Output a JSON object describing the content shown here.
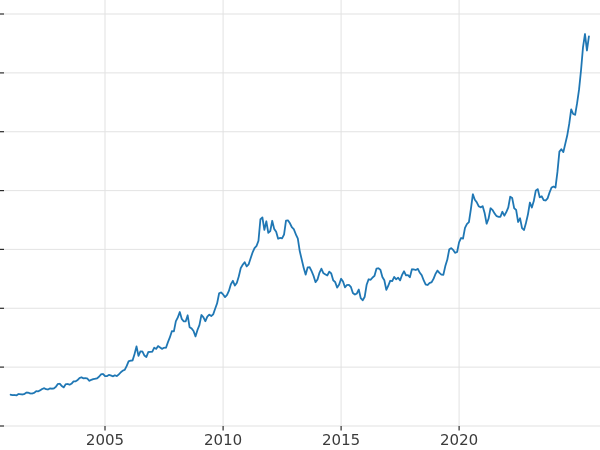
{
  "figure": {
    "background": "#ffffff"
  },
  "chart_data": {
    "type": "line",
    "title": "",
    "xlabel": "",
    "ylabel": "",
    "grid": true,
    "legend": "none",
    "xlim": [
      2000.55,
      2025.97
    ],
    "ylim": [
      0,
      3619
    ],
    "x_tick_years": [
      2005,
      2010,
      2015,
      2020
    ],
    "x_tick_labels": [
      "2005",
      "2010",
      "2015",
      "2020"
    ],
    "y_gridline_interval": 500,
    "y_tick_labels_visible": false,
    "series": [
      {
        "name": "series-1",
        "color": "#1f77b4",
        "x_start_year": 2001,
        "x_step_years": 0.0833333,
        "values": [
          266,
          262,
          263,
          260,
          272,
          270,
          268,
          272,
          284,
          283,
          276,
          276,
          282,
          296,
          294,
          303,
          314,
          321,
          313,
          310,
          319,
          317,
          319,
          333,
          357,
          359,
          340,
          328,
          355,
          357,
          351,
          360,
          379,
          379,
          390,
          407,
          414,
          405,
          407,
          403,
          384,
          392,
          398,
          401,
          405,
          420,
          439,
          442,
          424,
          424,
          434,
          429,
          422,
          431,
          424,
          438,
          456,
          470,
          477,
          510,
          550,
          555,
          557,
          611,
          676,
          596,
          634,
          633,
          599,
          586,
          628,
          630,
          631,
          665,
          655,
          679,
          667,
          655,
          665,
          665,
          713,
          755,
          806,
          804,
          890,
          922,
          968,
          910,
          889,
          889,
          940,
          839,
          829,
          807,
          761,
          816,
          858,
          943,
          924,
          890,
          929,
          946,
          934,
          949,
          997,
          1043,
          1127,
          1135,
          1118,
          1095,
          1113,
          1149,
          1205,
          1233,
          1193,
          1216,
          1271,
          1342,
          1370,
          1391,
          1356,
          1373,
          1424,
          1474,
          1511,
          1529,
          1573,
          1756,
          1772,
          1666,
          1739,
          1641,
          1656,
          1743,
          1674,
          1650,
          1591,
          1598,
          1594,
          1626,
          1745,
          1747,
          1722,
          1688,
          1671,
          1628,
          1593,
          1485,
          1414,
          1343,
          1286,
          1347,
          1349,
          1316,
          1276,
          1222,
          1244,
          1301,
          1336,
          1299,
          1288,
          1279,
          1311,
          1296,
          1238,
          1223,
          1176,
          1201,
          1251,
          1227,
          1178,
          1198,
          1199,
          1181,
          1130,
          1117,
          1125,
          1159,
          1086,
          1068,
          1097,
          1200,
          1246,
          1242,
          1261,
          1276,
          1337,
          1340,
          1327,
          1266,
          1238,
          1157,
          1192,
          1234,
          1231,
          1266,
          1246,
          1260,
          1237,
          1283,
          1314,
          1280,
          1282,
          1264,
          1331,
          1330,
          1325,
          1335,
          1303,
          1281,
          1238,
          1202,
          1198,
          1215,
          1221,
          1250,
          1292,
          1320,
          1301,
          1286,
          1284,
          1359,
          1413,
          1500,
          1511,
          1495,
          1471,
          1479,
          1561,
          1597,
          1592,
          1683,
          1716,
          1732,
          1843,
          1969,
          1922,
          1900,
          1866,
          1858,
          1867,
          1808,
          1718,
          1762,
          1850,
          1835,
          1807,
          1784,
          1777,
          1777,
          1820,
          1787,
          1817,
          1856,
          1948,
          1937,
          1850,
          1836,
          1733,
          1765,
          1681,
          1665,
          1725,
          1797,
          1898,
          1856,
          1913,
          2000,
          2012,
          1943,
          1951,
          1919,
          1916,
          1934,
          1984,
          2026,
          2034,
          2025,
          2158,
          2331,
          2351,
          2327,
          2398,
          2470,
          2568,
          2690,
          2651,
          2644,
          2743,
          2860,
          3024,
          3218,
          3330,
          3190,
          3310
        ]
      }
    ],
    "style": {
      "gridline_color": "#e2e2e2",
      "tick_color": "#2b2b2b",
      "tick_label_color": "#3a3a3a",
      "line_width": 1.8
    }
  }
}
